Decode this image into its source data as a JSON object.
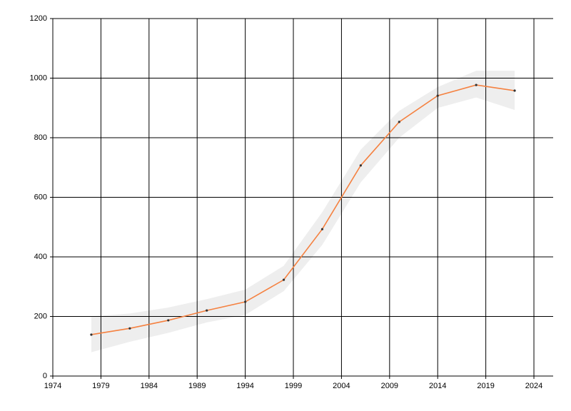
{
  "chart_data": {
    "type": "line",
    "x": [
      1978,
      1982,
      1986,
      1990,
      1994,
      1998,
      2002,
      2006,
      2010,
      2014,
      2018,
      2022
    ],
    "series": [
      {
        "color": "#f58140",
        "values": [
          139,
          160,
          187,
          220,
          249,
          323,
          493,
          707,
          853,
          941,
          977,
          958
        ]
      }
    ],
    "band": {
      "color": "#eeeeee",
      "upper": [
        200,
        210,
        230,
        258,
        290,
        370,
        550,
        760,
        890,
        970,
        1025,
        1025
      ],
      "lower": [
        80,
        115,
        145,
        180,
        205,
        285,
        440,
        650,
        800,
        900,
        935,
        893
      ]
    },
    "xlim": [
      1974,
      2026
    ],
    "xticks": [
      1974,
      1979,
      1984,
      1989,
      1994,
      1999,
      2004,
      2009,
      2014,
      2019,
      2024
    ],
    "ylim": [
      0,
      1200
    ],
    "yticks": [
      0,
      200,
      400,
      600,
      800,
      1000,
      1200
    ],
    "grid": true
  }
}
